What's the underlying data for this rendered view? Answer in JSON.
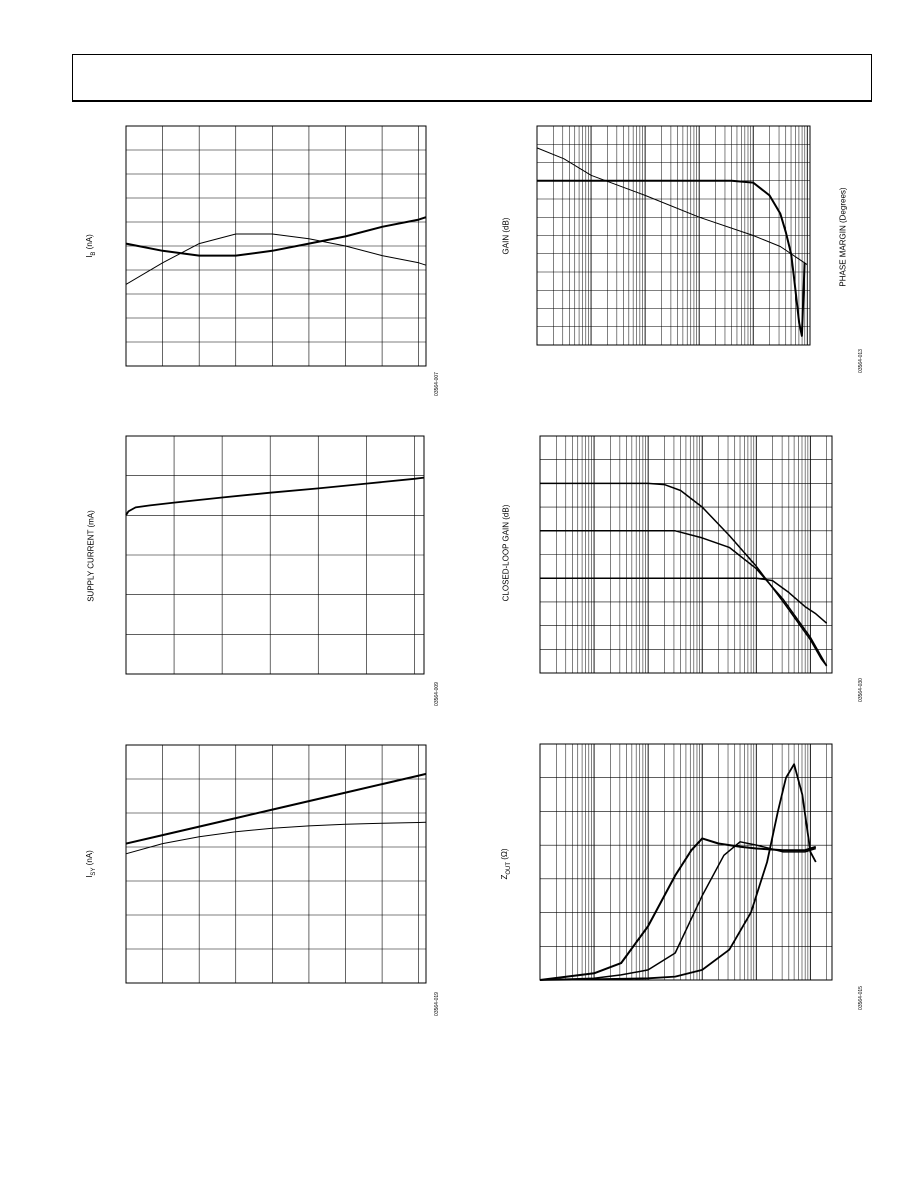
{
  "labels": {
    "ib": "I",
    "ib_sub": "B",
    "ib_unit": " (nA)",
    "supply": "SUPPLY CURRENT (mA)",
    "isy": "I",
    "isy_sub": "SY",
    "isy_unit": " (nA)",
    "gain": "GAIN (dB)",
    "phase": "PHASE MARGIN (Degrees)",
    "cl_gain": "CLOSED-LOOP GAIN (dB)",
    "zout": "Z",
    "zout_sub": "OUT",
    "zout_unit": " (Ω)"
  },
  "figure_numbers": {
    "ib": "03564-007",
    "supply": "03564-009",
    "isy": "03564-019",
    "gain": "03564-013",
    "cl_gain": "03564-030",
    "zout": "03564-015"
  },
  "colors": {
    "line": "#000000",
    "grid": "#000000",
    "background": "#ffffff"
  },
  "chart_data": [
    {
      "id": "ib",
      "type": "line",
      "title": "",
      "xlabel": "",
      "ylabel": "IB (nA)",
      "xlim": [
        0,
        8.2
      ],
      "ylim": [
        0,
        10
      ],
      "grid": true,
      "xscale": "linear",
      "series": [
        {
          "width": 2.0,
          "x": [
            0,
            1,
            2,
            3,
            4,
            5,
            6,
            7,
            8,
            8.2
          ],
          "y": [
            5.1,
            4.8,
            4.6,
            4.6,
            4.8,
            5.1,
            5.4,
            5.8,
            6.1,
            6.2
          ]
        },
        {
          "width": 1.0,
          "x": [
            0,
            1,
            2,
            3,
            4,
            5,
            6,
            7,
            8,
            8.2
          ],
          "y": [
            3.4,
            4.3,
            5.1,
            5.5,
            5.5,
            5.3,
            5.0,
            4.6,
            4.3,
            4.2
          ]
        }
      ]
    },
    {
      "id": "supply",
      "type": "line",
      "title": "",
      "xlabel": "",
      "ylabel": "SUPPLY CURRENT (mA)",
      "xlim": [
        0,
        6.2
      ],
      "ylim": [
        0,
        6
      ],
      "grid": true,
      "xscale": "linear",
      "series": [
        {
          "width": 1.8,
          "x": [
            0,
            0.05,
            0.2,
            0.5,
            1,
            2,
            3,
            4,
            5,
            6,
            6.2
          ],
          "y": [
            4.0,
            4.1,
            4.2,
            4.25,
            4.32,
            4.45,
            4.57,
            4.68,
            4.8,
            4.92,
            4.95
          ]
        }
      ]
    },
    {
      "id": "isy",
      "type": "line",
      "title": "",
      "xlabel": "",
      "ylabel": "ISY (nA)",
      "xlim": [
        0,
        8.2
      ],
      "ylim": [
        0,
        7
      ],
      "grid": true,
      "xscale": "linear",
      "series": [
        {
          "width": 2.0,
          "x": [
            0,
            1,
            2,
            3,
            4,
            5,
            6,
            7,
            8,
            8.2
          ],
          "y": [
            4.1,
            4.35,
            4.6,
            4.85,
            5.1,
            5.35,
            5.6,
            5.85,
            6.1,
            6.15
          ]
        },
        {
          "width": 1.0,
          "x": [
            0,
            1,
            2,
            3,
            4,
            5,
            6,
            7,
            8,
            8.2
          ],
          "y": [
            3.8,
            4.1,
            4.3,
            4.45,
            4.55,
            4.62,
            4.67,
            4.7,
            4.72,
            4.73
          ]
        }
      ]
    },
    {
      "id": "gain",
      "type": "line",
      "title": "",
      "xlabel": "",
      "ylabel": "GAIN (dB)",
      "y2label": "PHASE MARGIN (Degrees)",
      "xlim": [
        0,
        5.05
      ],
      "ylim": [
        0,
        12
      ],
      "grid": true,
      "xscale": "log",
      "series": [
        {
          "width": 2.0,
          "x": [
            0,
            1,
            2,
            3,
            3.6,
            4.0,
            4.3,
            4.5,
            4.6,
            4.7,
            4.75,
            4.8,
            4.85,
            4.9,
            4.95
          ],
          "y": [
            9.0,
            9.0,
            9.0,
            9.0,
            9.0,
            8.9,
            8.2,
            7.2,
            6.2,
            5.0,
            3.8,
            2.5,
            1.2,
            0.5,
            4.5
          ]
        },
        {
          "width": 1.0,
          "x": [
            0,
            0.5,
            1,
            2,
            3,
            4,
            4.5,
            4.8,
            5.0
          ],
          "y": [
            10.8,
            10.2,
            9.3,
            8.2,
            7.0,
            6.0,
            5.4,
            4.8,
            4.4
          ]
        }
      ]
    },
    {
      "id": "cl_gain",
      "type": "line",
      "title": "",
      "xlabel": "",
      "ylabel": "CLOSED-LOOP GAIN (dB)",
      "xlim": [
        0,
        5.4
      ],
      "ylim": [
        0,
        10
      ],
      "grid": true,
      "xscale": "log",
      "series": [
        {
          "width": 1.5,
          "x": [
            0,
            1,
            2,
            2.3,
            2.6,
            3,
            3.5,
            4,
            4.5,
            5,
            5.2,
            5.3
          ],
          "y": [
            8,
            8,
            8,
            7.95,
            7.7,
            7.0,
            5.8,
            4.5,
            3.0,
            1.4,
            0.6,
            0.3
          ]
        },
        {
          "width": 1.5,
          "x": [
            0,
            1,
            2,
            2.5,
            3,
            3.5,
            4,
            4.5,
            5,
            5.3
          ],
          "y": [
            6,
            6,
            6,
            6,
            5.7,
            5.3,
            4.4,
            3.1,
            1.5,
            0.3
          ]
        },
        {
          "width": 1.5,
          "x": [
            0,
            1,
            2,
            3,
            3.7,
            4,
            4.3,
            4.6,
            4.9,
            5.1,
            5.3
          ],
          "y": [
            4,
            4,
            4,
            4,
            4,
            4,
            3.9,
            3.4,
            2.8,
            2.5,
            2.1
          ]
        }
      ]
    },
    {
      "id": "zout",
      "type": "line",
      "title": "",
      "xlabel": "",
      "ylabel": "ZOUT (Ω)",
      "xlim": [
        0,
        5.4
      ],
      "ylim": [
        0,
        7
      ],
      "grid": true,
      "xscale": "log",
      "series": [
        {
          "width": 2.0,
          "x": [
            0,
            0.5,
            1,
            1.5,
            2,
            2.5,
            2.8,
            3,
            3.3,
            3.7,
            4,
            4.5,
            4.9,
            5.0,
            5.1
          ],
          "y": [
            0,
            0.1,
            0.2,
            0.5,
            1.6,
            3.1,
            3.85,
            4.2,
            4.05,
            3.95,
            3.9,
            3.85,
            3.85,
            3.9,
            3.95
          ]
        },
        {
          "width": 1.5,
          "x": [
            0,
            1,
            1.5,
            2,
            2.5,
            3,
            3.4,
            3.7,
            4,
            4.5,
            4.9,
            5.0,
            5.1
          ],
          "y": [
            0,
            0.05,
            0.15,
            0.3,
            0.8,
            2.5,
            3.7,
            4.1,
            4.0,
            3.8,
            3.8,
            3.85,
            3.9
          ]
        },
        {
          "width": 1.8,
          "x": [
            0,
            1,
            2,
            2.5,
            3,
            3.5,
            3.9,
            4.2,
            4.4,
            4.55,
            4.7,
            4.85,
            5.0,
            5.1
          ],
          "y": [
            0,
            0.02,
            0.05,
            0.1,
            0.3,
            0.9,
            2.0,
            3.5,
            5.0,
            6.0,
            6.4,
            5.5,
            3.8,
            3.5
          ]
        }
      ]
    }
  ]
}
